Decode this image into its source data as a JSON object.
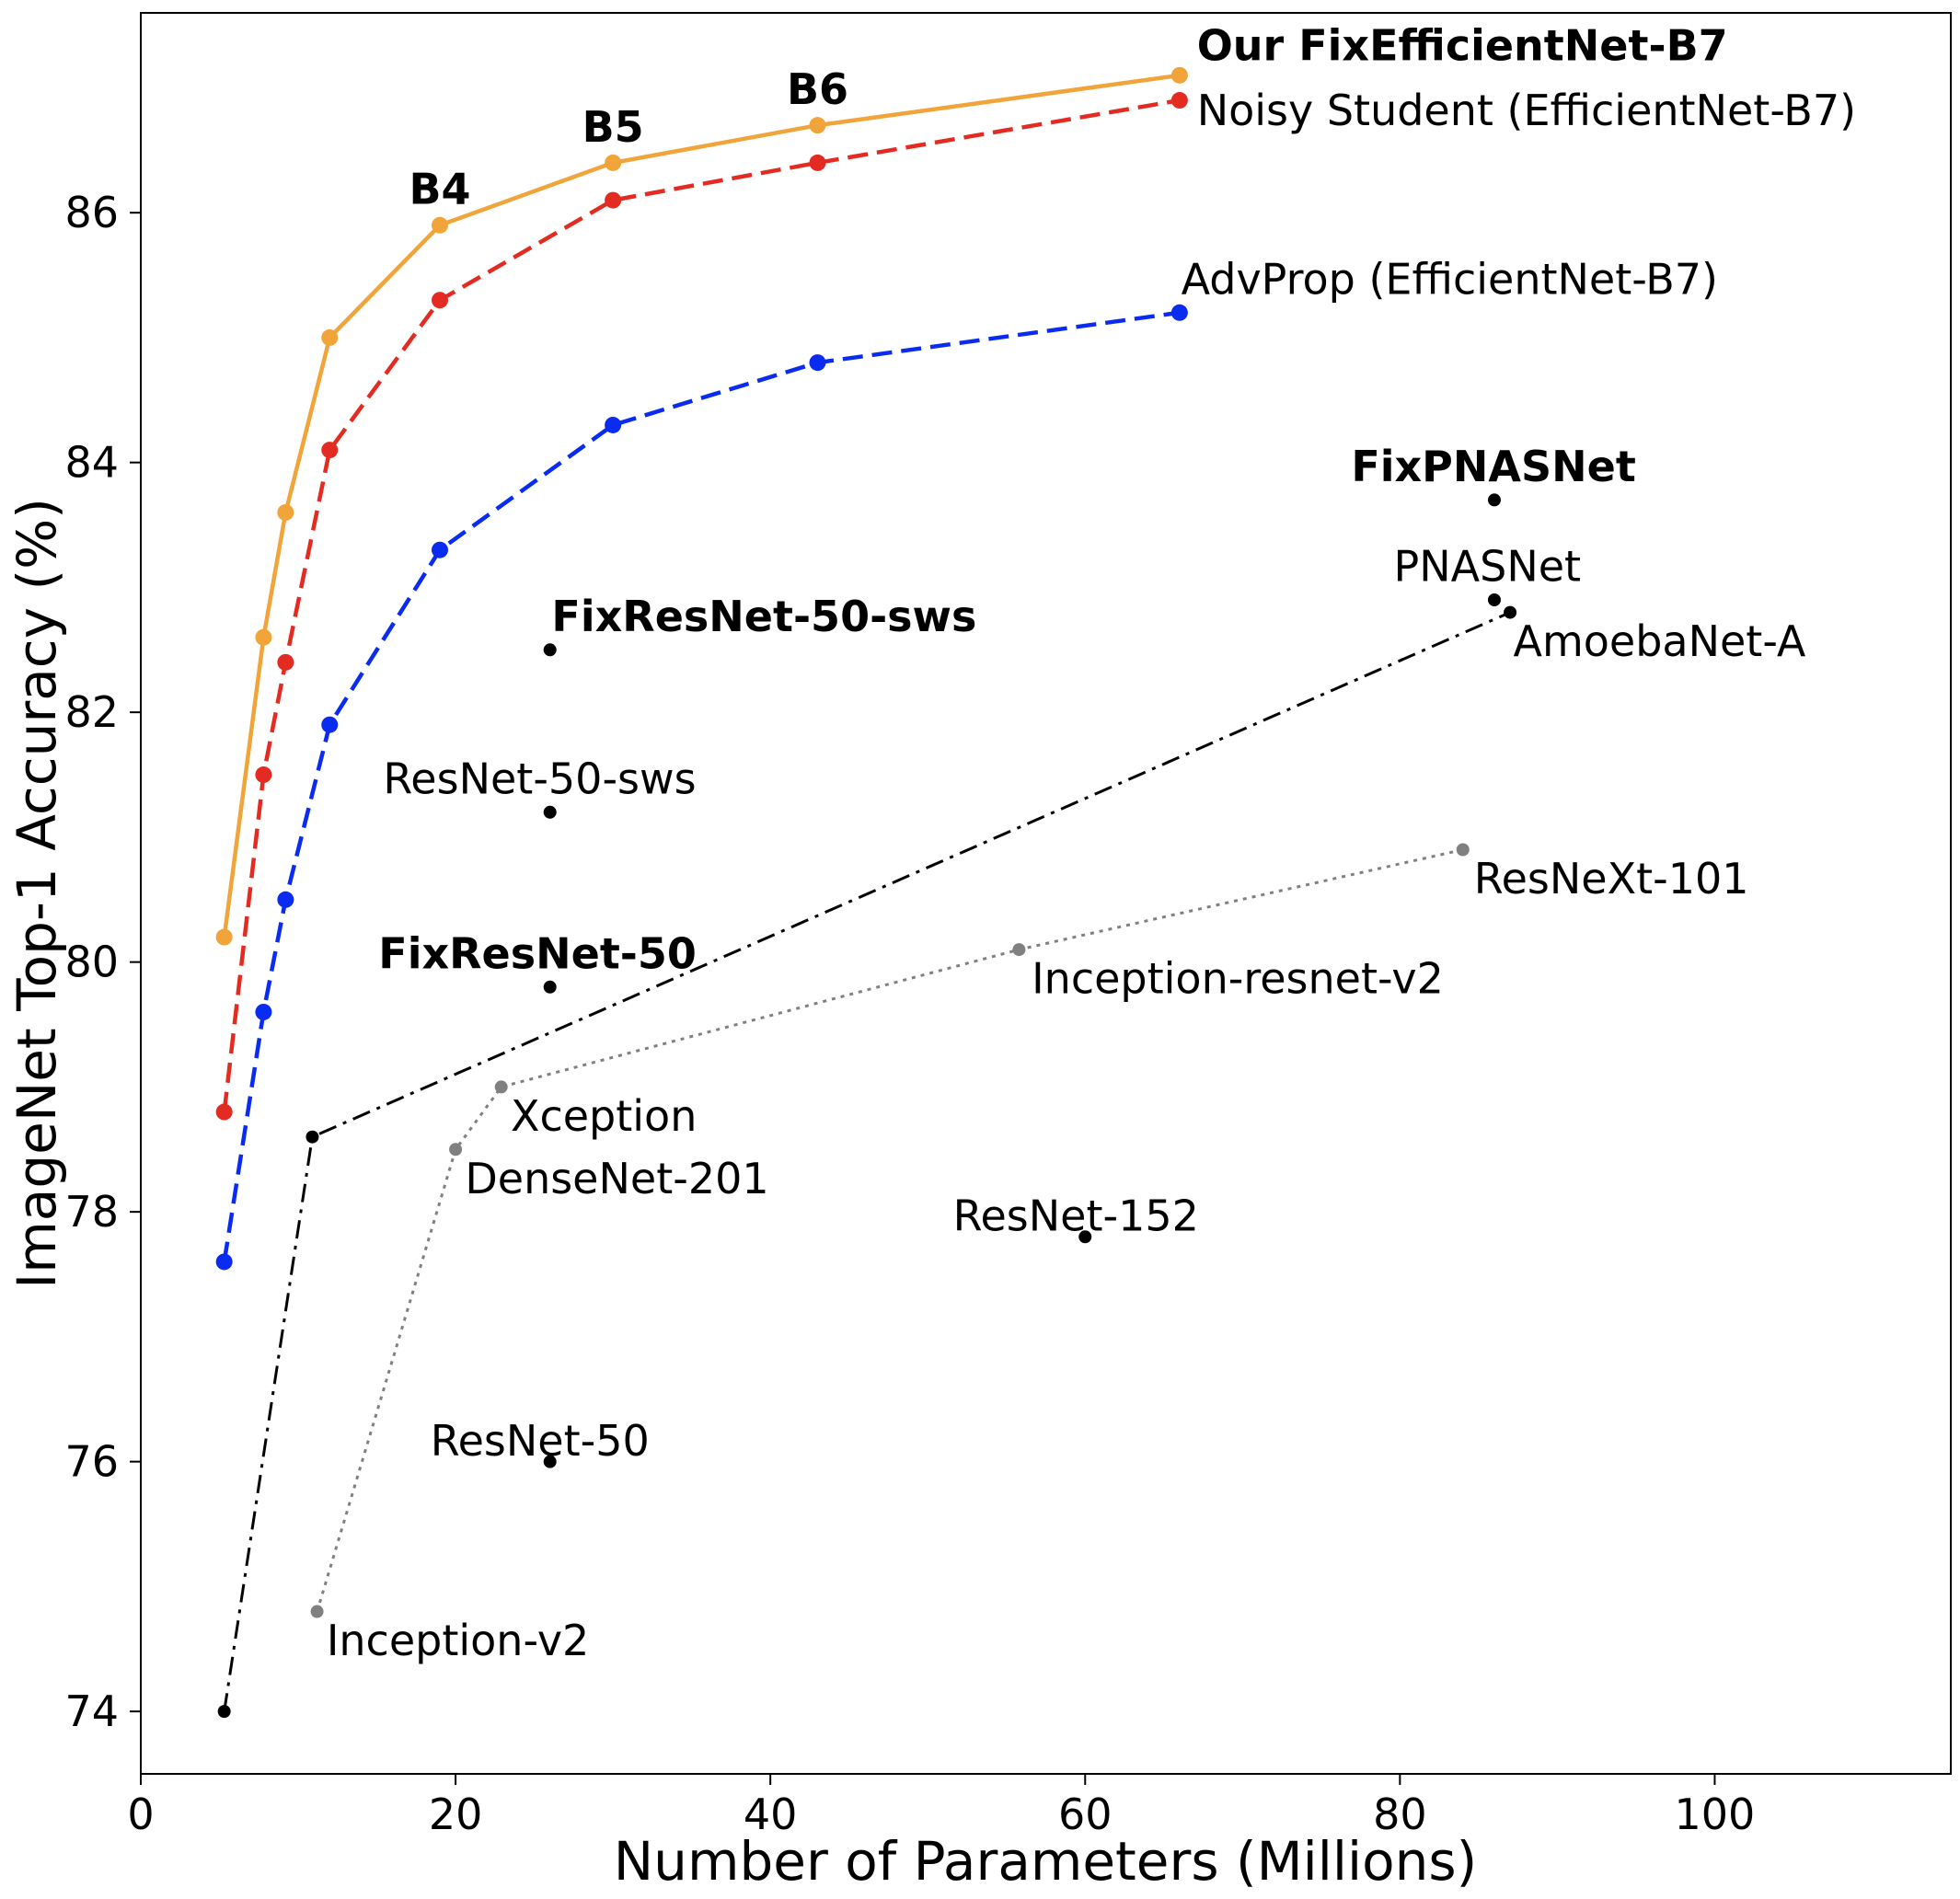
{
  "chart_data": {
    "type": "line",
    "xlabel": "Number of Parameters (Millions)",
    "ylabel": "ImageNet Top-1 Accuracy (%)",
    "xlim": [
      0,
      115
    ],
    "ylim": [
      73.5,
      87.6
    ],
    "xticks": [
      0,
      20,
      40,
      60,
      80,
      100
    ],
    "yticks": [
      74,
      76,
      78,
      80,
      82,
      84,
      86
    ],
    "grid": false,
    "series": [
      {
        "key": "fixeff",
        "color": "#f0a43a",
        "style": "solid",
        "marker_size": "large",
        "points": [
          {
            "x": 5.3,
            "y": 80.2
          },
          {
            "x": 7.8,
            "y": 82.6
          },
          {
            "x": 9.2,
            "y": 83.6
          },
          {
            "x": 12,
            "y": 85.0
          },
          {
            "x": 19,
            "y": 85.9
          },
          {
            "x": 30,
            "y": 86.4
          },
          {
            "x": 43,
            "y": 86.7
          },
          {
            "x": 66,
            "y": 87.1
          }
        ]
      },
      {
        "key": "noisy",
        "color": "#e32b22",
        "style": "dashed",
        "marker_size": "large",
        "points": [
          {
            "x": 5.3,
            "y": 78.8
          },
          {
            "x": 7.8,
            "y": 81.5
          },
          {
            "x": 9.2,
            "y": 82.4
          },
          {
            "x": 12,
            "y": 84.1
          },
          {
            "x": 19,
            "y": 85.3
          },
          {
            "x": 30,
            "y": 86.1
          },
          {
            "x": 43,
            "y": 86.4
          },
          {
            "x": 66,
            "y": 86.9
          }
        ]
      },
      {
        "key": "advprop",
        "color": "#0a2bf0",
        "style": "dashed",
        "marker_size": "large",
        "points": [
          {
            "x": 5.3,
            "y": 77.6
          },
          {
            "x": 7.8,
            "y": 79.6
          },
          {
            "x": 9.2,
            "y": 80.5
          },
          {
            "x": 12,
            "y": 81.9
          },
          {
            "x": 19,
            "y": 83.3
          },
          {
            "x": 30,
            "y": 84.3
          },
          {
            "x": 43,
            "y": 84.8
          },
          {
            "x": 66,
            "y": 85.2
          }
        ]
      },
      {
        "key": "nas",
        "color": "#000000",
        "style": "dashdot",
        "marker_size": "small",
        "points": [
          {
            "x": 5.3,
            "y": 74.0
          },
          {
            "x": 10.9,
            "y": 78.6
          },
          {
            "x": 87,
            "y": 82.8
          }
        ]
      },
      {
        "key": "classic",
        "color": "#808080",
        "style": "dotted",
        "marker_size": "small",
        "points": [
          {
            "x": 11.2,
            "y": 74.8
          },
          {
            "x": 20,
            "y": 78.5
          },
          {
            "x": 22.9,
            "y": 79.0
          },
          {
            "x": 55.8,
            "y": 80.1
          },
          {
            "x": 84,
            "y": 80.9
          }
        ]
      }
    ],
    "points": [
      {
        "x": 26,
        "y": 82.5
      },
      {
        "x": 26,
        "y": 81.2
      },
      {
        "x": 26,
        "y": 79.8
      },
      {
        "x": 26,
        "y": 76.0
      },
      {
        "x": 60,
        "y": 77.8
      },
      {
        "x": 86,
        "y": 83.7
      },
      {
        "x": 86,
        "y": 82.9
      }
    ],
    "annotations": [
      {
        "text": "Our FixEfficientNet-B7",
        "x": 67.1,
        "y": 87.22,
        "anchor": "start",
        "bold": true
      },
      {
        "text": "Noisy Student (EfficientNet-B7)",
        "x": 67.1,
        "y": 86.7,
        "anchor": "start",
        "bold": false
      },
      {
        "text": "B4",
        "x": 19,
        "y": 86.07,
        "anchor": "middle",
        "bold": true
      },
      {
        "text": "B5",
        "x": 30,
        "y": 86.57,
        "anchor": "middle",
        "bold": true
      },
      {
        "text": "B6",
        "x": 43,
        "y": 86.87,
        "anchor": "middle",
        "bold": true
      },
      {
        "text": "AdvProp (EfficientNet-B7)",
        "x": 66.1,
        "y": 85.35,
        "anchor": "start",
        "bold": false
      },
      {
        "text": "FixPNASNet",
        "x": 76.9,
        "y": 83.85,
        "anchor": "start",
        "bold": true
      },
      {
        "text": "PNASNet",
        "x": 79.6,
        "y": 83.05,
        "anchor": "start",
        "bold": false
      },
      {
        "text": "AmoebaNet-A",
        "x": 87.2,
        "y": 82.45,
        "anchor": "start",
        "bold": false
      },
      {
        "text": "FixResNet-50-sws",
        "x": 26.1,
        "y": 82.65,
        "anchor": "start",
        "bold": true
      },
      {
        "text": "ResNet-50-sws",
        "x": 15.4,
        "y": 81.35,
        "anchor": "start",
        "bold": false
      },
      {
        "text": "FixResNet-50",
        "x": 15.1,
        "y": 79.95,
        "anchor": "start",
        "bold": true
      },
      {
        "text": "ResNeXt-101",
        "x": 84.7,
        "y": 80.55,
        "anchor": "start",
        "bold": false
      },
      {
        "text": "Inception-resnet-v2",
        "x": 56.6,
        "y": 79.75,
        "anchor": "start",
        "bold": false
      },
      {
        "text": "Xception",
        "x": 23.5,
        "y": 78.65,
        "anchor": "start",
        "bold": false
      },
      {
        "text": "DenseNet-201",
        "x": 20.6,
        "y": 78.15,
        "anchor": "start",
        "bold": false
      },
      {
        "text": "ResNet-152",
        "x": 51.6,
        "y": 77.85,
        "anchor": "start",
        "bold": false
      },
      {
        "text": "ResNet-50",
        "x": 18.4,
        "y": 76.05,
        "anchor": "start",
        "bold": false
      },
      {
        "text": "Inception-v2",
        "x": 11.8,
        "y": 74.45,
        "anchor": "start",
        "bold": false
      }
    ]
  }
}
